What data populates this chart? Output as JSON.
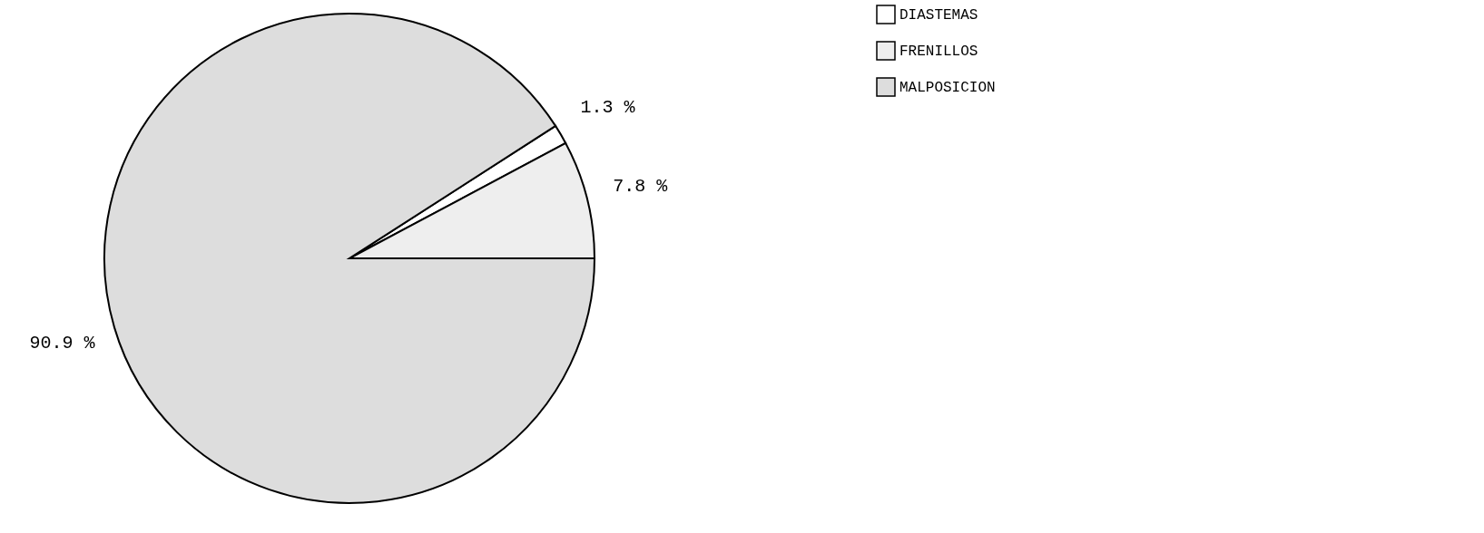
{
  "chart_data": {
    "type": "pie",
    "categories": [
      "DIASTEMAS",
      "FRENILLOS",
      "MALPOSICION"
    ],
    "values": [
      1.3,
      7.8,
      90.9
    ],
    "colors": [
      "#ffffff",
      "#eeeeee",
      "#dddddd"
    ],
    "value_labels": [
      "1.3 %",
      "7.8 %",
      "90.9 %"
    ],
    "legend": "right"
  }
}
